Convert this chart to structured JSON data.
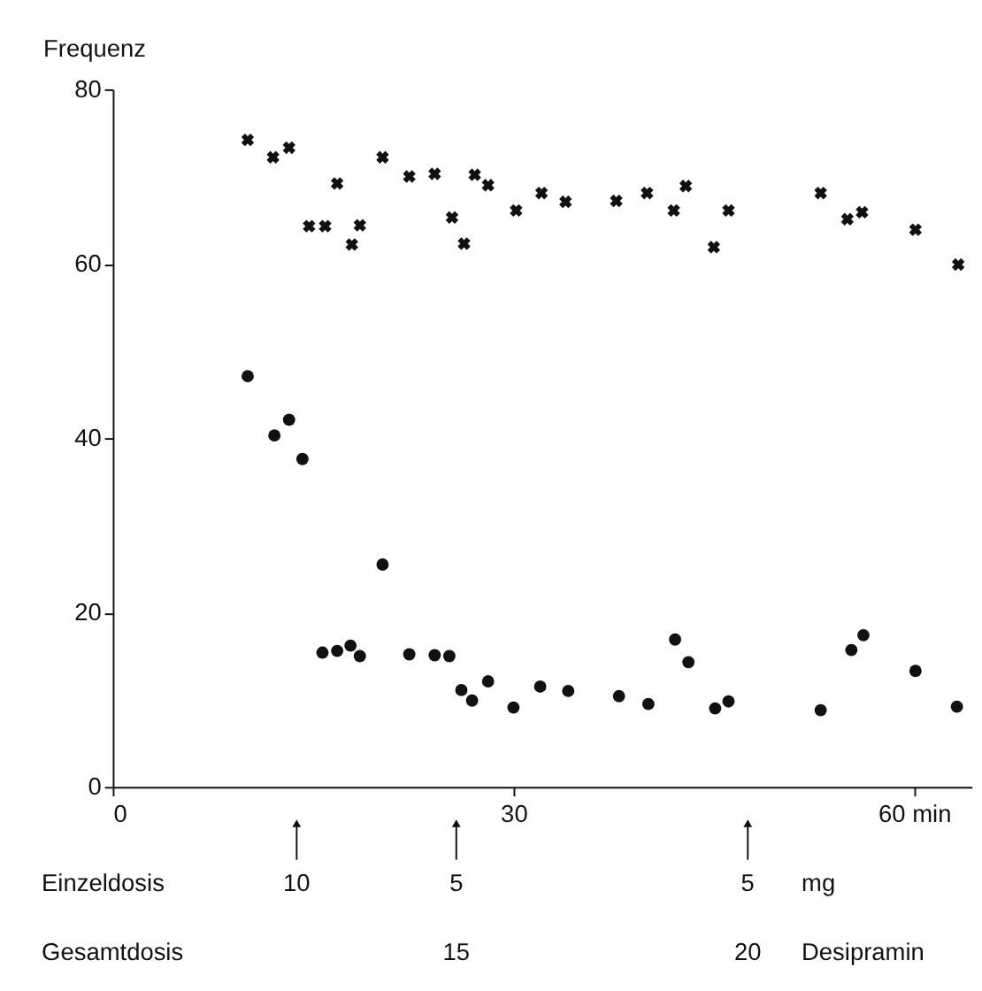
{
  "chart_data": {
    "type": "scatter",
    "ylabel": "Frequenz",
    "xlim": [
      0,
      64.3
    ],
    "xticks": [
      0,
      30,
      {
        "value": 60,
        "label": "60 min"
      }
    ],
    "ylim": [
      0,
      80
    ],
    "yticks": [
      0,
      20,
      40,
      60,
      80
    ],
    "grid": false,
    "series": [
      {
        "color": "#111111",
        "marker": "cross",
        "x": [
          10.1,
          12.0,
          13.2,
          14.7,
          15.9,
          16.8,
          17.9,
          18.5,
          20.2,
          22.2,
          24.1,
          25.4,
          26.3,
          27.1,
          28.1,
          30.2,
          32.1,
          33.9,
          37.7,
          40.0,
          42.0,
          42.9,
          45.0,
          46.1,
          53.0,
          55.0,
          56.1,
          60.1,
          63.3
        ],
        "values": [
          74.2,
          72.2,
          73.3,
          64.3,
          64.3,
          69.2,
          62.2,
          64.4,
          72.2,
          70.0,
          70.3,
          65.3,
          62.3,
          70.2,
          69.0,
          66.1,
          68.1,
          67.1,
          67.2,
          68.1,
          66.1,
          68.9,
          61.9,
          66.1,
          68.1,
          65.1,
          65.9,
          63.9,
          59.9
        ]
      },
      {
        "color": "#111111",
        "marker": "circle",
        "x": [
          10.1,
          12.1,
          13.2,
          14.2,
          15.7,
          16.8,
          17.8,
          18.5,
          20.2,
          22.2,
          24.1,
          25.2,
          26.1,
          26.9,
          28.1,
          30.0,
          32.0,
          34.1,
          37.9,
          40.1,
          42.1,
          43.1,
          45.1,
          46.1,
          53.0,
          55.3,
          56.2,
          60.1,
          63.2
        ],
        "values": [
          47.1,
          40.3,
          42.1,
          37.6,
          15.4,
          15.6,
          16.2,
          15.0,
          25.5,
          15.2,
          15.1,
          15.0,
          11.1,
          9.9,
          12.1,
          9.1,
          11.5,
          11.0,
          10.4,
          9.5,
          16.9,
          14.3,
          9.0,
          9.8,
          8.8,
          15.7,
          17.4,
          13.3,
          9.2
        ]
      }
    ],
    "annotations": [
      "Einzeldosis",
      "10",
      "5",
      "5",
      "mg",
      "Gesamtdosis",
      "15",
      "20",
      "Desipramin"
    ]
  }
}
